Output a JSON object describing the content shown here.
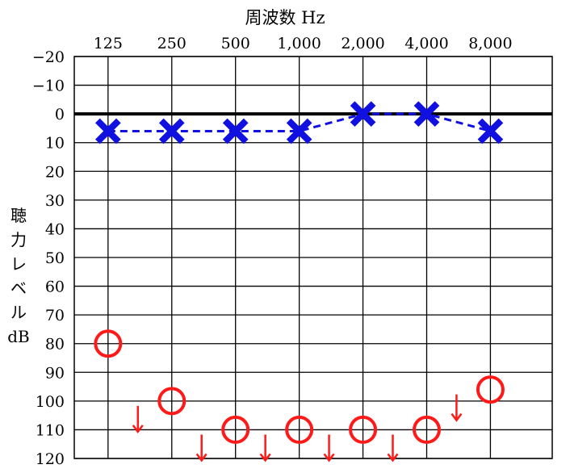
{
  "chart_data": {
    "type": "line",
    "xlabel": "周波数 Hz",
    "ylabel_chars": [
      "聴",
      "力",
      "レ",
      "ベ",
      "ル",
      "dB"
    ],
    "x_categories": [
      "125",
      "250",
      "500",
      "1,000",
      "2,000",
      "4,000",
      "8,000"
    ],
    "y_ticks": [
      "−20",
      "−10",
      "0",
      "10",
      "20",
      "30",
      "40",
      "50",
      "60",
      "70",
      "80",
      "90",
      "100",
      "110",
      "120"
    ],
    "ylim": [
      -20,
      120
    ],
    "y_inverted": true,
    "grid": true,
    "series": [
      {
        "marker": "x",
        "color": "#1010e0",
        "line_style": "dashed",
        "values": [
          6,
          6,
          6,
          6,
          0,
          0,
          6
        ]
      },
      {
        "marker": "o",
        "color": "#ff1a1a",
        "line_style": "none",
        "values": [
          80,
          100,
          110,
          110,
          110,
          110,
          96
        ],
        "no_response_arrows": [
          false,
          true,
          true,
          true,
          true,
          true,
          true
        ]
      }
    ],
    "colors": {
      "grid": "#000000",
      "zero_line": "#000000"
    }
  }
}
